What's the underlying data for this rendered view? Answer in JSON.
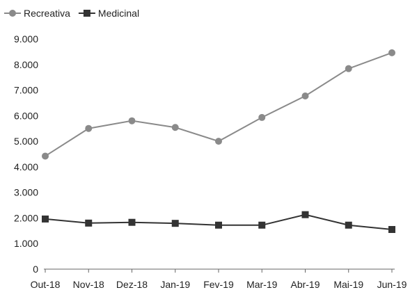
{
  "chart_data": {
    "type": "line",
    "categories": [
      "Out-18",
      "Nov-18",
      "Dez-18",
      "Jan-19",
      "Fev-19",
      "Mar-19",
      "Abr-19",
      "Mai-19",
      "Jun-19"
    ],
    "series": [
      {
        "name": "Recreativa",
        "values": [
          4420,
          5500,
          5800,
          5540,
          5000,
          5930,
          6770,
          7840,
          8460
        ],
        "marker": "circle",
        "color": "#8a8a8a"
      },
      {
        "name": "Medicinal",
        "values": [
          1960,
          1800,
          1830,
          1790,
          1720,
          1720,
          2130,
          1720,
          1550
        ],
        "marker": "square",
        "color": "#333333"
      }
    ],
    "y_ticks": [
      "0",
      "1.000",
      "2.000",
      "3.000",
      "4.000",
      "5.000",
      "6.000",
      "7.000",
      "8.000",
      "9.000"
    ],
    "ylim": [
      0,
      9000
    ],
    "grid": false,
    "legend_position": "top-left"
  }
}
